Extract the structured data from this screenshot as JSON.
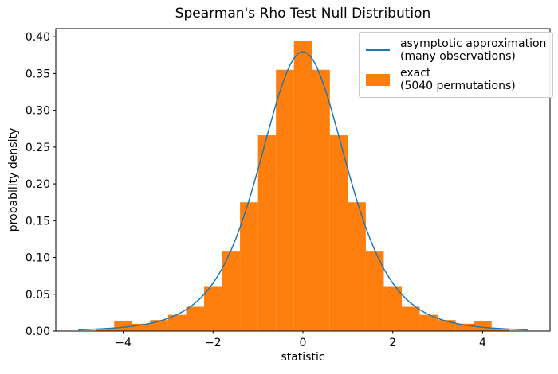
{
  "chart_data": {
    "type": "bar",
    "subtype": "histogram_with_line_overlay",
    "title": "Spearman's Rho Test Null Distribution",
    "xlabel": "statistic",
    "ylabel": "probability density",
    "xlim": [
      -5.5,
      5.5
    ],
    "ylim": [
      0,
      0.411
    ],
    "grid": false,
    "xticks": [
      -4,
      -2,
      0,
      2,
      4
    ],
    "xtick_labels": [
      "−4",
      "−2",
      "0",
      "2",
      "4"
    ],
    "yticks": [
      0,
      0.05,
      0.1,
      0.15,
      0.2,
      0.25,
      0.3,
      0.35,
      0.4
    ],
    "ytick_labels": [
      "0.00",
      "0.05",
      "0.10",
      "0.15",
      "0.20",
      "0.25",
      "0.30",
      "0.35",
      "0.40"
    ],
    "colors": {
      "line": "#1f77b4",
      "bar": "#ff7f0e",
      "spine": "#000000",
      "legend_border": "#cccccc",
      "text": "#000000",
      "background": "#ffffff"
    },
    "legend": {
      "position": "upper right",
      "entries": [
        {
          "type": "line",
          "line1": "asymptotic approximation",
          "line2": "(many observations)"
        },
        {
          "type": "patch",
          "line1": "exact",
          "line2": "(5040 permutations)"
        }
      ]
    },
    "histogram": {
      "name": "exact (5040 permutations)",
      "density": true,
      "bin_edges": [
        -5,
        -4.6,
        -4.2,
        -3.8,
        -3.4,
        -3,
        -2.6,
        -2.2,
        -1.8,
        -1.4,
        -1,
        -0.6,
        -0.2,
        0.2,
        0.6,
        1,
        1.4,
        1.8,
        2.2,
        2.6,
        3,
        3.4,
        3.8,
        4.2,
        4.6,
        5
      ],
      "densities": [
        0,
        0.003,
        0.013,
        0.01,
        0.015,
        0.022,
        0.033,
        0.06,
        0.108,
        0.175,
        0.266,
        0.355,
        0.394,
        0.355,
        0.266,
        0.175,
        0.108,
        0.06,
        0.033,
        0.022,
        0.015,
        0.01,
        0.013,
        0.003,
        0
      ]
    },
    "line": {
      "name": "asymptotic approximation (many observations)",
      "distribution": "Student t pdf, df = 5",
      "x": [
        -5,
        -4.75,
        -4.5,
        -4.25,
        -4,
        -3.75,
        -3.5,
        -3.25,
        -3,
        -2.75,
        -2.5,
        -2.25,
        -2,
        -1.75,
        -1.5,
        -1.25,
        -1,
        -0.75,
        -0.5,
        -0.25,
        0,
        0.25,
        0.5,
        0.75,
        1,
        1.25,
        1.5,
        1.75,
        2,
        2.25,
        2.5,
        2.75,
        3,
        3.25,
        3.5,
        3.75,
        4,
        4.25,
        4.5,
        4.75,
        5
      ],
      "y": [
        0.00176,
        0.00227,
        0.00295,
        0.00387,
        0.00512,
        0.00685,
        0.00924,
        0.01259,
        0.01729,
        0.02393,
        0.03333,
        0.04657,
        0.0651,
        0.09054,
        0.12455,
        0.16788,
        0.2197,
        0.2757,
        0.3279,
        0.36571,
        0.3796,
        0.36571,
        0.3279,
        0.2757,
        0.2197,
        0.16788,
        0.12455,
        0.09054,
        0.0651,
        0.04657,
        0.03333,
        0.02393,
        0.01729,
        0.01259,
        0.00924,
        0.00685,
        0.00512,
        0.00387,
        0.00295,
        0.00227,
        0.00176
      ]
    }
  }
}
